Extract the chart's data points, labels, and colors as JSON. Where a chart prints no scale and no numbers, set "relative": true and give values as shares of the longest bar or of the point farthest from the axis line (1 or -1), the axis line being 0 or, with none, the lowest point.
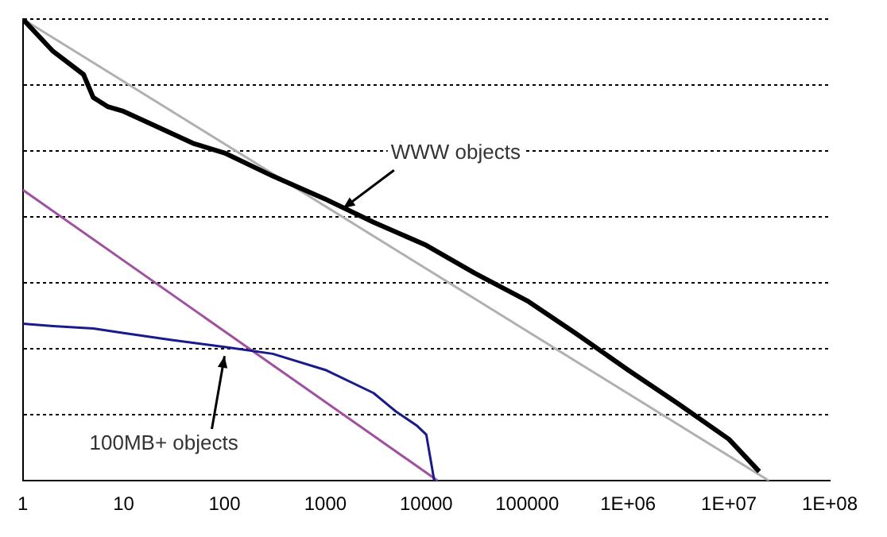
{
  "chart_data": {
    "type": "line",
    "relative": true,
    "log": "x",
    "grid": "y",
    "legend": false,
    "marker": "none",
    "xlim": [
      1,
      100000000
    ],
    "xticks": [
      1,
      10,
      100,
      1000,
      10000,
      100000,
      {
        "value": 1000000,
        "label": "1E+06"
      },
      {
        "value": 10000000,
        "label": "1E+07"
      },
      {
        "value": 100000000,
        "label": "1E+08"
      }
    ],
    "series": [
      {
        "color": "#000000",
        "x": [
          1,
          2,
          4,
          5,
          7,
          10,
          20,
          50,
          100,
          300,
          1000,
          3000,
          10000,
          30000,
          100000,
          300000,
          1000000,
          3000000,
          10000000,
          20000000
        ],
        "values": [
          1.0,
          0.93,
          0.88,
          0.83,
          0.81,
          0.8,
          0.77,
          0.73,
          0.71,
          0.66,
          0.61,
          0.56,
          0.51,
          0.45,
          0.39,
          0.32,
          0.24,
          0.17,
          0.09,
          0.02
        ]
      },
      {
        "color": "#b0b0b0",
        "x": [
          1,
          25000000
        ],
        "values": [
          1.0,
          0.0
        ]
      },
      {
        "color": "#1a1a8c",
        "x": [
          1,
          2,
          5,
          10,
          30,
          100,
          300,
          1000,
          3000,
          5000,
          8000,
          10000,
          12000
        ],
        "values": [
          0.34,
          0.335,
          0.33,
          0.32,
          0.305,
          0.29,
          0.275,
          0.24,
          0.19,
          0.15,
          0.12,
          0.1,
          0.0
        ]
      },
      {
        "color": "#a050a0",
        "x": [
          1,
          13000
        ],
        "values": [
          0.63,
          0.0
        ]
      }
    ],
    "annotations": [
      {
        "text": "WWW objects",
        "x": 1500,
        "y": 0.59
      },
      {
        "text": "100MB+ objects",
        "x": 100,
        "y": 0.27
      }
    ]
  }
}
